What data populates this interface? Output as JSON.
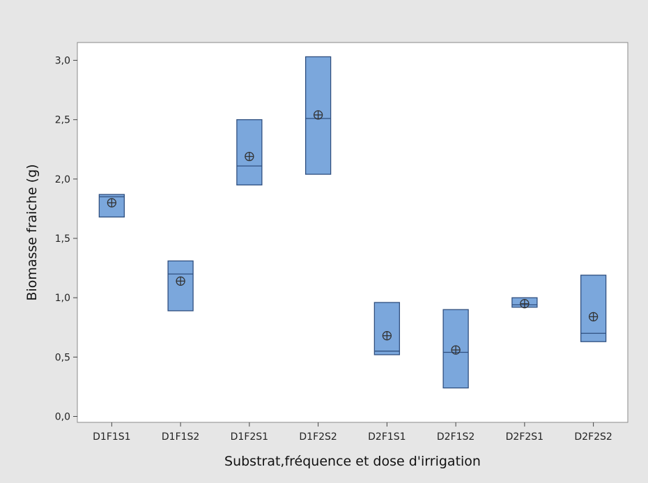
{
  "chart_data": {
    "type": "box",
    "title": "",
    "xlabel": "Substrat,fréquence et dose d'irrigation",
    "ylabel": "Biomasse fraiche (g)",
    "ylim": [
      -0.05,
      3.15
    ],
    "yticks": [
      "0,0",
      "0,5",
      "1,0",
      "1,5",
      "2,0",
      "2,5",
      "3,0"
    ],
    "ytick_values": [
      0,
      0.5,
      1.0,
      1.5,
      2.0,
      2.5,
      3.0
    ],
    "categories": [
      "D1F1S1",
      "D1F1S2",
      "D1F2S1",
      "D1F2S2",
      "D2F1S1",
      "D2F1S2",
      "D2F2S1",
      "D2F2S2"
    ],
    "series": [
      {
        "boxes": [
          {
            "q1": 1.68,
            "median": 1.85,
            "q3": 1.87,
            "mean": 1.8
          },
          {
            "q1": 0.89,
            "median": 1.2,
            "q3": 1.31,
            "mean": 1.14
          },
          {
            "q1": 1.95,
            "median": 2.11,
            "q3": 2.5,
            "mean": 2.19
          },
          {
            "q1": 2.04,
            "median": 2.51,
            "q3": 3.03,
            "mean": 2.54
          },
          {
            "q1": 0.52,
            "median": 0.55,
            "q3": 0.96,
            "mean": 0.68
          },
          {
            "q1": 0.24,
            "median": 0.54,
            "q3": 0.9,
            "mean": 0.56
          },
          {
            "q1": 0.92,
            "median": 0.94,
            "q3": 1.0,
            "mean": 0.95
          },
          {
            "q1": 0.63,
            "median": 0.7,
            "q3": 1.19,
            "mean": 0.84
          }
        ]
      }
    ],
    "grid": false,
    "legend": "none",
    "colors": {
      "box_fill": "#7ba7dc",
      "box_stroke": "#2f4f7f",
      "background": "#e6e6e6",
      "plot_bg": "#ffffff"
    }
  }
}
